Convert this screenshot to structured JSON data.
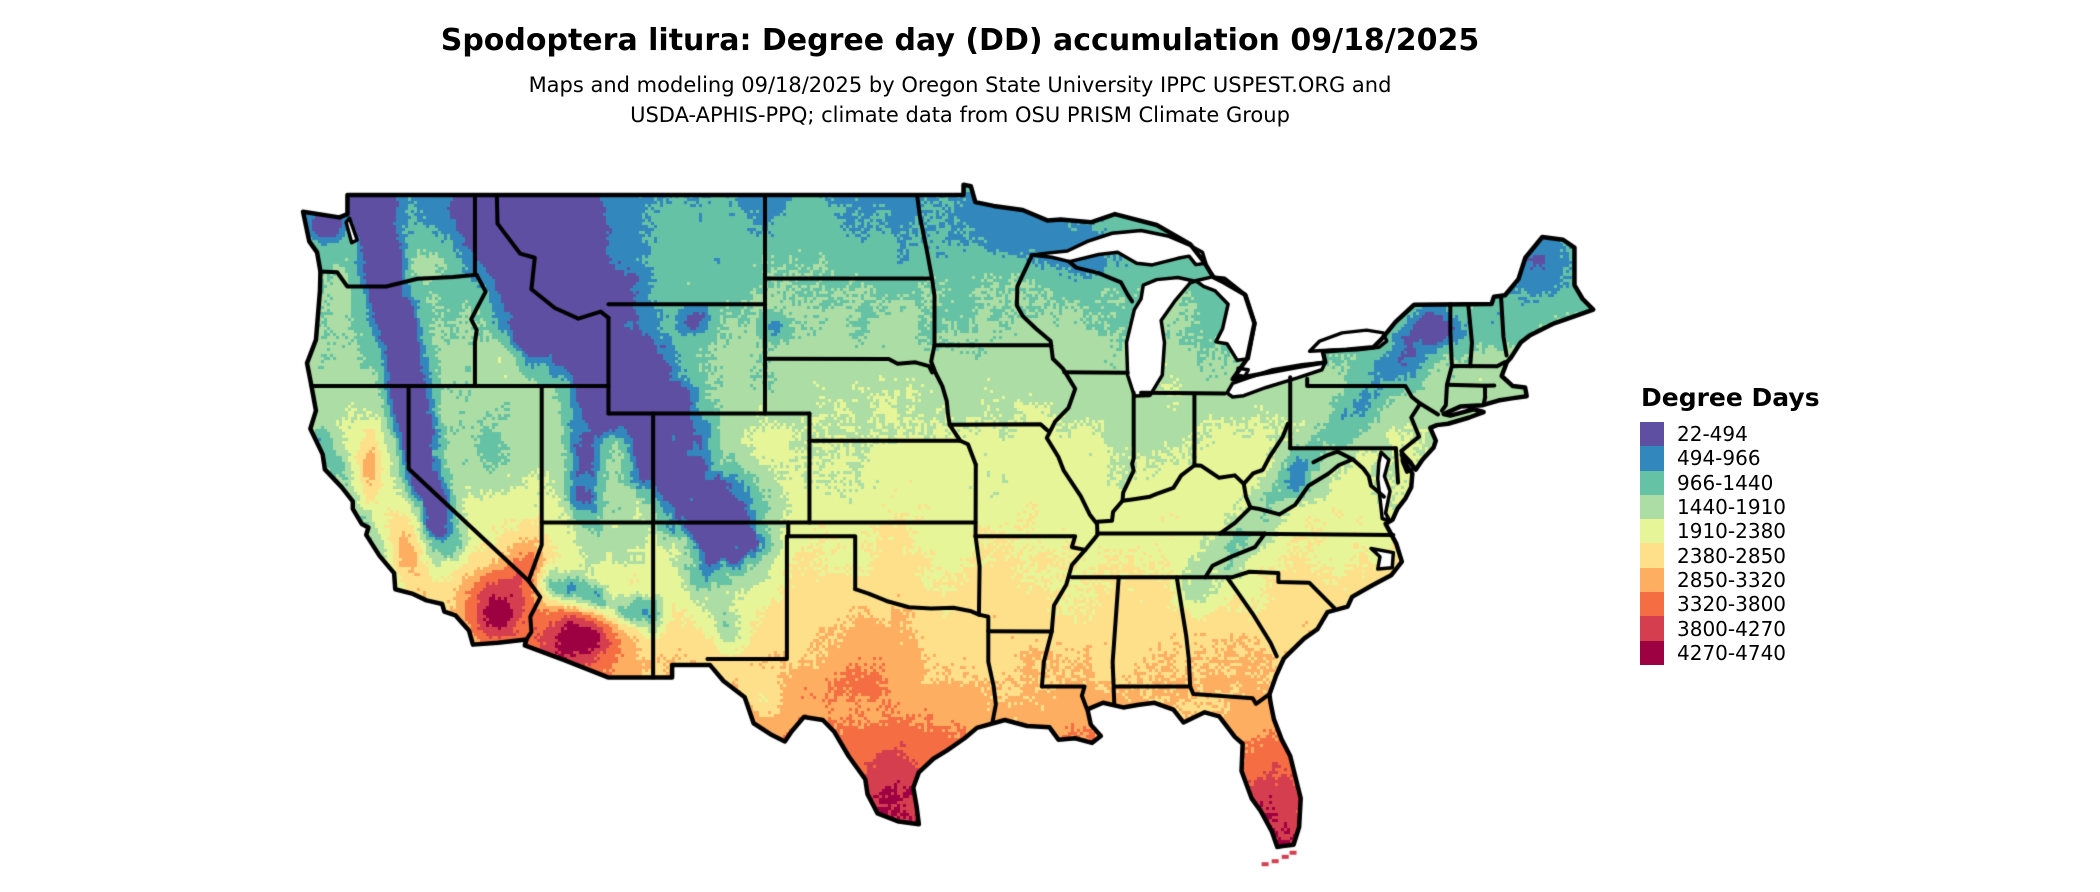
{
  "header": {
    "title": "Spodoptera litura: Degree day (DD) accumulation 09/18/2025",
    "subtitle_line1": "Maps and modeling 09/18/2025 by Oregon State University IPPC USPEST.ORG and",
    "subtitle_line2": "USDA-APHIS-PPQ; climate data from OSU PRISM Climate Group"
  },
  "legend": {
    "title": "Degree Days",
    "entries": [
      {
        "label": "22-494",
        "color": "#5e4fa2"
      },
      {
        "label": "494-966",
        "color": "#3288bd"
      },
      {
        "label": "966-1440",
        "color": "#66c2a5"
      },
      {
        "label": "1440-1910",
        "color": "#abdda4"
      },
      {
        "label": "1910-2380",
        "color": "#e6f598"
      },
      {
        "label": "2380-2850",
        "color": "#fee08b"
      },
      {
        "label": "2850-3320",
        "color": "#fdae61"
      },
      {
        "label": "3320-3800",
        "color": "#f46d43"
      },
      {
        "label": "3800-4270",
        "color": "#d53e4f"
      },
      {
        "label": "4270-4740",
        "color": "#9e0142"
      }
    ],
    "breaks": [
      22,
      494,
      966,
      1440,
      1910,
      2380,
      2850,
      3320,
      3800,
      4270,
      4740
    ]
  },
  "map": {
    "region": "Contiguous United States",
    "water_color": "#ffffff",
    "boundary_color": "#000000"
  }
}
